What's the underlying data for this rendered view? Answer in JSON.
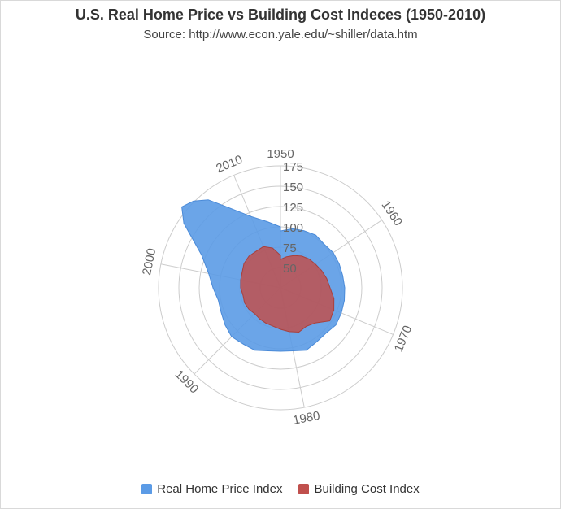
{
  "chart_data": {
    "type": "radar",
    "title": "U.S. Real Home Price vs Building Cost Indeces (1950-2010)",
    "subtitle": "Source: http://www.econ.yale.edu/~shiller/data.htm",
    "year_start": 1950,
    "year_end": 2014,
    "angular_labels": [
      "1950",
      "1960",
      "1970",
      "1980",
      "1990",
      "2000",
      "2010"
    ],
    "radial_ticks": [
      50,
      75,
      100,
      125,
      150,
      175
    ],
    "radial_range": [
      25,
      175
    ],
    "series": [
      {
        "name": "Real Home Price Index",
        "color": "#5b9be6",
        "years": [
          1950,
          1952,
          1954,
          1956,
          1958,
          1960,
          1962,
          1964,
          1966,
          1968,
          1970,
          1972,
          1974,
          1976,
          1978,
          1980,
          1982,
          1984,
          1986,
          1988,
          1990,
          1992,
          1994,
          1996,
          1998,
          2000,
          2002,
          2004,
          2005,
          2006,
          2007,
          2008,
          2010,
          2012,
          2014
        ],
        "values": [
          95,
          99,
          101,
          103,
          101,
          103,
          103,
          103,
          104,
          105,
          106,
          107,
          104,
          105,
          108,
          104,
          103,
          104,
          108,
          108,
          110,
          107,
          104,
          103,
          108,
          115,
          130,
          168,
          182,
          176,
          165,
          145,
          120,
          108,
          100
        ]
      },
      {
        "name": "Building Cost Index",
        "color": "#c0504d",
        "years": [
          1950,
          1952,
          1954,
          1956,
          1958,
          1960,
          1962,
          1964,
          1966,
          1968,
          1970,
          1972,
          1974,
          1976,
          1978,
          1980,
          1982,
          1984,
          1986,
          1988,
          1990,
          1992,
          1994,
          1996,
          1998,
          2000,
          2002,
          2004,
          2006,
          2008,
          2010,
          2012,
          2014
        ],
        "values": [
          60,
          64,
          68,
          72,
          75,
          77,
          80,
          83,
          86,
          92,
          96,
          98,
          86,
          82,
          84,
          80,
          76,
          73,
          72,
          71,
          70,
          72,
          73,
          72,
          74,
          75,
          76,
          79,
          80,
          79,
          80,
          75,
          65
        ]
      }
    ]
  }
}
